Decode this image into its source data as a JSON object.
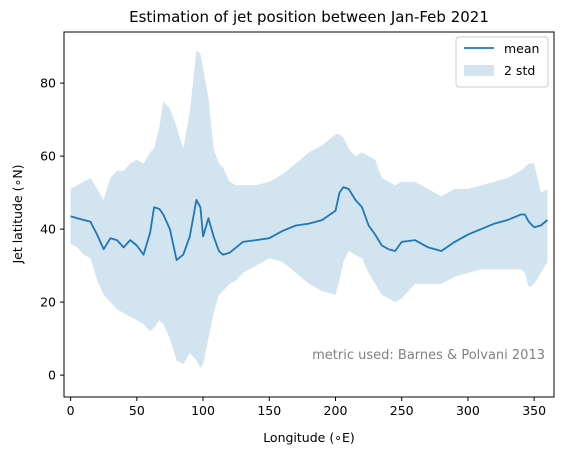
{
  "chart_data": {
    "type": "line",
    "title": "Estimation of jet position between Jan-Feb 2021",
    "xlabel": "Longitude (∘E)",
    "ylabel": "Jet latitude (∘N)",
    "xlim": [
      -5,
      365
    ],
    "ylim": [
      -6,
      94
    ],
    "xticks": [
      0,
      50,
      100,
      150,
      200,
      250,
      300,
      350
    ],
    "yticks": [
      0,
      20,
      40,
      60,
      80
    ],
    "annotation": "metric used: Barnes & Polvani 2013",
    "colors": {
      "line": "#1f77b4",
      "band": "#1f77b4",
      "annotation": "#808080"
    },
    "legend": {
      "location": "top-right",
      "entries": [
        "mean",
        "2 std"
      ]
    },
    "series": [
      {
        "name": "mean",
        "x": [
          0,
          5,
          10,
          15,
          20,
          25,
          30,
          35,
          40,
          45,
          50,
          55,
          60,
          63,
          67,
          70,
          75,
          80,
          85,
          90,
          95,
          98,
          100,
          104,
          108,
          112,
          115,
          120,
          125,
          130,
          140,
          150,
          160,
          170,
          180,
          190,
          200,
          203,
          206,
          210,
          215,
          220,
          225,
          230,
          235,
          240,
          245,
          250,
          260,
          270,
          280,
          290,
          300,
          310,
          320,
          330,
          340,
          343,
          346,
          350,
          355,
          360
        ],
        "y": [
          43.5,
          43,
          42.5,
          42,
          38.5,
          34.5,
          37.5,
          37,
          35,
          37,
          35.5,
          33,
          39,
          46,
          45.5,
          44,
          40,
          31.5,
          33,
          38,
          48,
          46,
          38,
          43,
          38,
          34,
          33,
          33.5,
          35,
          36.5,
          37,
          37.5,
          39.5,
          41,
          41.5,
          42.5,
          45,
          50,
          51.5,
          51,
          48,
          46,
          41,
          38.5,
          35.5,
          34.5,
          34,
          36.5,
          37,
          35,
          34,
          36.5,
          38.5,
          40,
          41.5,
          42.5,
          44,
          44,
          42,
          40.5,
          41,
          42.5
        ]
      },
      {
        "name": "2 std",
        "x": [
          0,
          5,
          10,
          15,
          20,
          25,
          30,
          35,
          40,
          45,
          50,
          55,
          60,
          63,
          67,
          70,
          75,
          80,
          85,
          90,
          95,
          98,
          100,
          104,
          108,
          112,
          115,
          120,
          125,
          130,
          140,
          150,
          160,
          170,
          180,
          190,
          200,
          203,
          206,
          210,
          215,
          220,
          225,
          230,
          235,
          240,
          245,
          250,
          260,
          270,
          280,
          290,
          300,
          310,
          320,
          330,
          340,
          343,
          346,
          350,
          355,
          360
        ],
        "upper": [
          51,
          52,
          53,
          54,
          51,
          48,
          54,
          56,
          56,
          58,
          59,
          58,
          61,
          62,
          68,
          75,
          73,
          68,
          62,
          72,
          89,
          88,
          84,
          76,
          62,
          58,
          57,
          53,
          52,
          52,
          52,
          53,
          55,
          58,
          61,
          63,
          66,
          66,
          65,
          62,
          60,
          61,
          60,
          59,
          54,
          53,
          52,
          53,
          53,
          51,
          49,
          51,
          51,
          52,
          53,
          54,
          56,
          57,
          58,
          58,
          50,
          51
        ],
        "lower": [
          36,
          35,
          33,
          32,
          26,
          22,
          20,
          18,
          17,
          16,
          15,
          14,
          12,
          13,
          15,
          14,
          10,
          4,
          3,
          6,
          4,
          2,
          3,
          10,
          17,
          22,
          23,
          25,
          26,
          28,
          30,
          32,
          31,
          28,
          25,
          23,
          22,
          26,
          31,
          34,
          33,
          32,
          28,
          25,
          22,
          21,
          20,
          21,
          25,
          25,
          25,
          27,
          28,
          29,
          29,
          29,
          29,
          28,
          24,
          25,
          28,
          31
        ]
      }
    ]
  }
}
